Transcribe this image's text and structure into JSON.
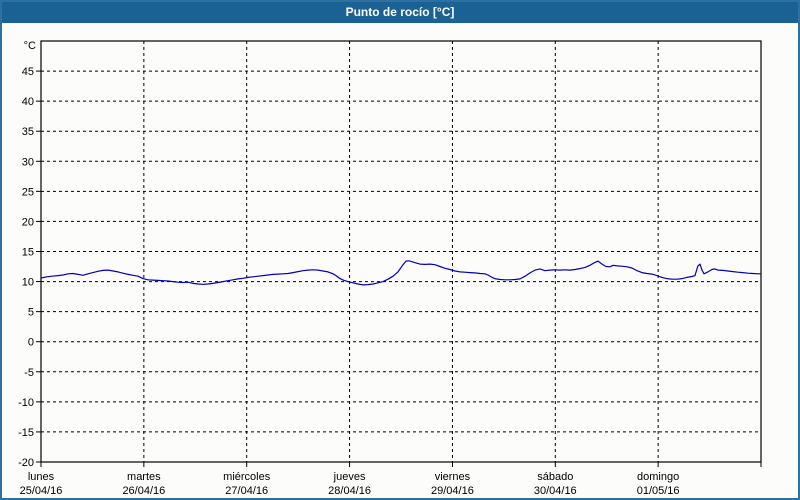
{
  "window": {
    "title": "Punto de rocío [°C]"
  },
  "colors": {
    "titlebar": "#1b6294",
    "window_border": "#2e71a1",
    "background": "#fcfdfb",
    "line": "#0000bb",
    "grid": "#000000",
    "text": "#000000"
  },
  "chart_data": {
    "type": "line",
    "title": "Punto de rocío [°C]",
    "ylabel": "°C",
    "ylim": [
      -20,
      50
    ],
    "ytick_step": 5,
    "ytick_labels": [
      45,
      40,
      35,
      30,
      25,
      20,
      15,
      10,
      5,
      0,
      -5,
      -10,
      -15,
      -20
    ],
    "grid": "dashed",
    "legend": "none",
    "x_range_days": [
      0,
      7
    ],
    "x_labels": [
      {
        "name": "lunes",
        "date": "25/04/16"
      },
      {
        "name": "martes",
        "date": "26/04/16"
      },
      {
        "name": "miércoles",
        "date": "27/04/16"
      },
      {
        "name": "jueves",
        "date": "28/04/16"
      },
      {
        "name": "viernes",
        "date": "29/04/16"
      },
      {
        "name": "sábado",
        "date": "30/04/16"
      },
      {
        "name": "domingo",
        "date": "01/05/16"
      }
    ],
    "series": [
      {
        "name": "Punto de rocío [°C]",
        "color": "#0000bb",
        "points": [
          [
            0,
            10.6
          ],
          [
            0.058,
            10.8
          ],
          [
            0.107,
            10.9
          ],
          [
            0.165,
            11.0
          ],
          [
            0.214,
            11.1
          ],
          [
            0.262,
            11.3
          ],
          [
            0.311,
            11.35
          ],
          [
            0.36,
            11.2
          ],
          [
            0.408,
            11.05
          ],
          [
            0.457,
            11.3
          ],
          [
            0.506,
            11.5
          ],
          [
            0.554,
            11.7
          ],
          [
            0.603,
            11.85
          ],
          [
            0.651,
            11.9
          ],
          [
            0.7,
            11.75
          ],
          [
            0.749,
            11.6
          ],
          [
            0.797,
            11.4
          ],
          [
            0.846,
            11.2
          ],
          [
            0.894,
            11.05
          ],
          [
            0.943,
            10.9
          ],
          [
            0.992,
            10.5
          ],
          [
            1.04,
            10.3
          ],
          [
            1.089,
            10.25
          ],
          [
            1.138,
            10.2
          ],
          [
            1.186,
            10.15
          ],
          [
            1.235,
            10.1
          ],
          [
            1.283,
            10.0
          ],
          [
            1.332,
            9.9
          ],
          [
            1.381,
            9.85
          ],
          [
            1.429,
            9.9
          ],
          [
            1.478,
            9.7
          ],
          [
            1.526,
            9.6
          ],
          [
            1.575,
            9.55
          ],
          [
            1.624,
            9.6
          ],
          [
            1.672,
            9.7
          ],
          [
            1.721,
            9.85
          ],
          [
            1.769,
            10.0
          ],
          [
            1.818,
            10.15
          ],
          [
            1.867,
            10.3
          ],
          [
            1.915,
            10.45
          ],
          [
            1.964,
            10.55
          ],
          [
            2.013,
            10.7
          ],
          [
            2.061,
            10.8
          ],
          [
            2.11,
            10.9
          ],
          [
            2.158,
            11.0
          ],
          [
            2.207,
            11.1
          ],
          [
            2.256,
            11.2
          ],
          [
            2.304,
            11.25
          ],
          [
            2.353,
            11.3
          ],
          [
            2.401,
            11.35
          ],
          [
            2.45,
            11.5
          ],
          [
            2.499,
            11.65
          ],
          [
            2.547,
            11.8
          ],
          [
            2.596,
            11.9
          ],
          [
            2.644,
            11.95
          ],
          [
            2.693,
            11.9
          ],
          [
            2.742,
            11.75
          ],
          [
            2.79,
            11.6
          ],
          [
            2.839,
            11.3
          ],
          [
            2.868,
            11.0
          ],
          [
            2.907,
            10.5
          ],
          [
            2.946,
            10.2
          ],
          [
            2.985,
            10.0
          ],
          [
            3.033,
            9.8
          ],
          [
            3.082,
            9.6
          ],
          [
            3.131,
            9.45
          ],
          [
            3.179,
            9.5
          ],
          [
            3.228,
            9.6
          ],
          [
            3.276,
            9.8
          ],
          [
            3.325,
            10.0
          ],
          [
            3.374,
            10.4
          ],
          [
            3.422,
            10.9
          ],
          [
            3.471,
            11.6
          ],
          [
            3.519,
            12.8
          ],
          [
            3.549,
            13.4
          ],
          [
            3.578,
            13.45
          ],
          [
            3.607,
            13.3
          ],
          [
            3.646,
            13.1
          ],
          [
            3.685,
            12.9
          ],
          [
            3.733,
            12.85
          ],
          [
            3.782,
            12.9
          ],
          [
            3.831,
            12.8
          ],
          [
            3.879,
            12.5
          ],
          [
            3.928,
            12.2
          ],
          [
            3.976,
            12.0
          ],
          [
            4.025,
            11.75
          ],
          [
            4.074,
            11.6
          ],
          [
            4.122,
            11.55
          ],
          [
            4.171,
            11.5
          ],
          [
            4.219,
            11.45
          ],
          [
            4.268,
            11.35
          ],
          [
            4.317,
            11.3
          ],
          [
            4.346,
            11.1
          ],
          [
            4.385,
            10.7
          ],
          [
            4.424,
            10.45
          ],
          [
            4.463,
            10.35
          ],
          [
            4.511,
            10.3
          ],
          [
            4.56,
            10.3
          ],
          [
            4.608,
            10.35
          ],
          [
            4.657,
            10.45
          ],
          [
            4.706,
            10.9
          ],
          [
            4.754,
            11.45
          ],
          [
            4.803,
            11.9
          ],
          [
            4.851,
            12.1
          ],
          [
            4.9,
            11.8
          ],
          [
            4.949,
            11.9
          ],
          [
            4.997,
            11.95
          ],
          [
            5.046,
            11.9
          ],
          [
            5.094,
            11.95
          ],
          [
            5.143,
            11.9
          ],
          [
            5.192,
            12.0
          ],
          [
            5.24,
            12.15
          ],
          [
            5.289,
            12.35
          ],
          [
            5.337,
            12.7
          ],
          [
            5.376,
            13.1
          ],
          [
            5.415,
            13.4
          ],
          [
            5.454,
            12.9
          ],
          [
            5.493,
            12.5
          ],
          [
            5.532,
            12.45
          ],
          [
            5.561,
            12.7
          ],
          [
            5.6,
            12.6
          ],
          [
            5.648,
            12.55
          ],
          [
            5.697,
            12.45
          ],
          [
            5.746,
            12.25
          ],
          [
            5.794,
            11.8
          ],
          [
            5.843,
            11.5
          ],
          [
            5.891,
            11.35
          ],
          [
            5.94,
            11.25
          ],
          [
            5.989,
            11.0
          ],
          [
            6.037,
            10.7
          ],
          [
            6.086,
            10.5
          ],
          [
            6.134,
            10.4
          ],
          [
            6.183,
            10.4
          ],
          [
            6.232,
            10.5
          ],
          [
            6.28,
            10.7
          ],
          [
            6.329,
            10.85
          ],
          [
            6.358,
            11.0
          ],
          [
            6.387,
            12.6
          ],
          [
            6.407,
            12.9
          ],
          [
            6.426,
            11.9
          ],
          [
            6.446,
            11.3
          ],
          [
            6.484,
            11.6
          ],
          [
            6.523,
            12.0
          ],
          [
            6.552,
            12.1
          ],
          [
            6.581,
            11.9
          ],
          [
            6.63,
            11.85
          ],
          [
            6.678,
            11.75
          ],
          [
            6.727,
            11.65
          ],
          [
            6.776,
            11.55
          ],
          [
            6.824,
            11.5
          ],
          [
            6.873,
            11.4
          ],
          [
            6.922,
            11.35
          ],
          [
            6.97,
            11.3
          ],
          [
            7,
            11.3
          ]
        ]
      }
    ]
  }
}
